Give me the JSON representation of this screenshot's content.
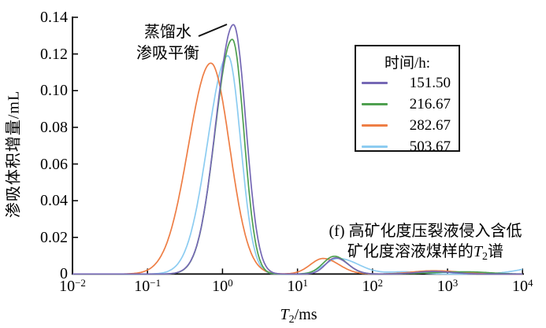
{
  "figure": {
    "caption": {
      "line1": "(f) 高矿化度压裂液侵入含低",
      "line2_pre": "矿化度溶液煤样的",
      "line2_t": "T",
      "line2_t_sub": "2",
      "line2_post": "谱"
    },
    "annotation": {
      "line1": "蒸馏水",
      "line2": "渗吸平衡"
    }
  },
  "axes": {
    "y_title": "渗吸体积增量/mL",
    "x_title_t": "T",
    "x_title_t_sub": "2",
    "x_title_unit": "/ms",
    "y_ticks": [
      "0",
      "0.02",
      "0.04",
      "0.06",
      "0.08",
      "0.10",
      "0.12",
      "0.14"
    ],
    "x_ticks": [
      {
        "base": "10",
        "exp": "−2"
      },
      {
        "base": "10",
        "exp": "−1"
      },
      {
        "base": "10",
        "exp": "0"
      },
      {
        "base": "10",
        "exp": "1"
      },
      {
        "base": "10",
        "exp": "2"
      },
      {
        "base": "10",
        "exp": "3"
      },
      {
        "base": "10",
        "exp": "4"
      }
    ]
  },
  "legend": {
    "title": "时间/h:"
  },
  "colors": {
    "axis": "#000000",
    "annotation_line": "#111111"
  },
  "chart_data": {
    "type": "line",
    "x_scale": "log",
    "xlim": [
      0.01,
      10000
    ],
    "ylim": [
      0,
      0.14
    ],
    "xlabel": "T2/ms",
    "ylabel": "渗吸体积增量/mL",
    "legend_title": "时间/h",
    "grid": false,
    "caption": "(f) 高矿化度压裂液侵入含低矿化度溶液煤样的T2谱",
    "annotation": "蒸馏水渗吸平衡（指向151.50 h曲线主峰）",
    "series": [
      {
        "name": "151.50",
        "color": "#7568B5",
        "peaks": [
          {
            "center_ms": 1.4,
            "peak_mL": 0.136,
            "sigma_left_dec": 0.235,
            "sigma_right_dec": 0.165
          },
          {
            "center_ms": 32,
            "peak_mL": 0.0088,
            "sigma_left_dec": 0.13,
            "sigma_right_dec": 0.17
          },
          {
            "center_ms": 640,
            "peak_mL": 0.0014,
            "sigma_left_dec": 0.22,
            "sigma_right_dec": 0.25
          }
        ]
      },
      {
        "name": "216.67",
        "color": "#4FA050",
        "peaks": [
          {
            "center_ms": 1.35,
            "peak_mL": 0.128,
            "sigma_left_dec": 0.23,
            "sigma_right_dec": 0.155
          },
          {
            "center_ms": 31,
            "peak_mL": 0.0097,
            "sigma_left_dec": 0.15,
            "sigma_right_dec": 0.17
          },
          {
            "center_ms": 1800,
            "peak_mL": 0.0012,
            "sigma_left_dec": 0.45,
            "sigma_right_dec": 0.3
          }
        ]
      },
      {
        "name": "282.67",
        "color": "#EE7E45",
        "peaks": [
          {
            "center_ms": 0.7,
            "peak_mL": 0.115,
            "sigma_left_dec": 0.3,
            "sigma_right_dec": 0.25
          },
          {
            "center_ms": 22,
            "peak_mL": 0.0085,
            "sigma_left_dec": 0.17,
            "sigma_right_dec": 0.21
          },
          {
            "center_ms": 650,
            "peak_mL": 0.0018,
            "sigma_left_dec": 0.28,
            "sigma_right_dec": 0.35
          }
        ]
      },
      {
        "name": "503.67",
        "color": "#8CCCF1",
        "peaks": [
          {
            "center_ms": 1.18,
            "peak_mL": 0.119,
            "sigma_left_dec": 0.27,
            "sigma_right_dec": 0.17
          },
          {
            "center_ms": 35,
            "peak_mL": 0.0085,
            "sigma_left_dec": 0.18,
            "sigma_right_dec": 0.27
          },
          {
            "center_ms": 270,
            "peak_mL": 0.0012,
            "sigma_left_dec": 0.2,
            "sigma_right_dec": 0.2
          },
          {
            "center_ms": 20000,
            "peak_mL": 0.004,
            "sigma_left_dec": 0.32,
            "sigma_right_dec": 0.3
          }
        ]
      }
    ]
  }
}
